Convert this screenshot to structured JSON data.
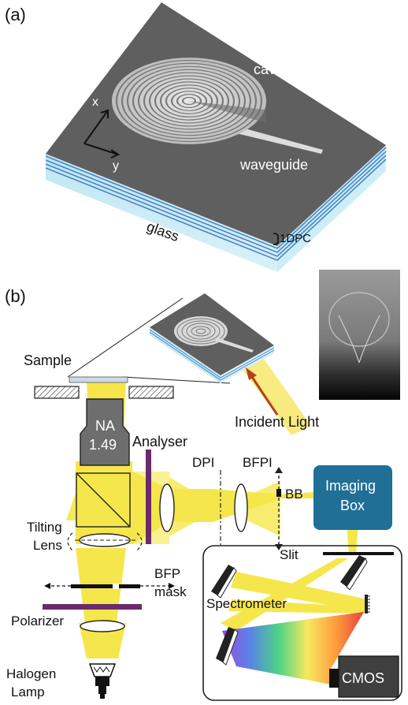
{
  "panel_a": {
    "label": "(a)",
    "cavity": "cavity",
    "waveguide": "waveguide",
    "axis_x": "x",
    "axis_y": "y",
    "glass": "glass",
    "dpc": "1DPC"
  },
  "panel_b": {
    "label": "(b)",
    "sample": "Sample",
    "na_line1": "NA",
    "na_line2": "1.49",
    "analyser": "Analyser",
    "dpi": "DPI",
    "bfpi": "BFPI",
    "bb": "BB",
    "imaging_line1": "Imaging",
    "imaging_line2": "Box",
    "incident_light": "Incident Light",
    "tilting_line1": "Tilting",
    "tilting_line2": "Lens",
    "bfp_line1": "BFP",
    "bfp_line2": "mask",
    "polarizer": "Polarizer",
    "slit": "Slit",
    "spectrometer": "Spectrometer",
    "cmos": "CMOS",
    "halogen_line1": "Halogen",
    "halogen_line2": "Lamp"
  },
  "colors": {
    "beam": "#f5e542",
    "purple": "#6b2a6b",
    "imaging_box": "#1f6f96",
    "glass": "#c6e9f4",
    "cavity_top": "#5d5d5d",
    "incident_arrow": "#b5421a"
  }
}
